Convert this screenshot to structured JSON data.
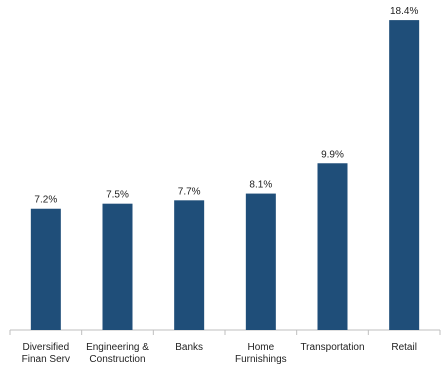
{
  "chart_data": {
    "type": "bar",
    "categories": [
      [
        "Diversified",
        "Finan Serv"
      ],
      [
        "Engineering &",
        "Construction"
      ],
      [
        "Banks"
      ],
      [
        "Home",
        "Furnishings"
      ],
      [
        "Transportation"
      ],
      [
        "Retail"
      ]
    ],
    "values": [
      7.2,
      7.5,
      7.7,
      8.1,
      9.9,
      18.4
    ],
    "data_labels": [
      "7.2%",
      "7.5%",
      "7.7%",
      "8.1%",
      "9.9%",
      "18.4%"
    ],
    "title": "",
    "xlabel": "",
    "ylabel": "",
    "ylim": [
      0,
      19.0
    ],
    "grid": false,
    "bar_color": "#1f4e79"
  }
}
